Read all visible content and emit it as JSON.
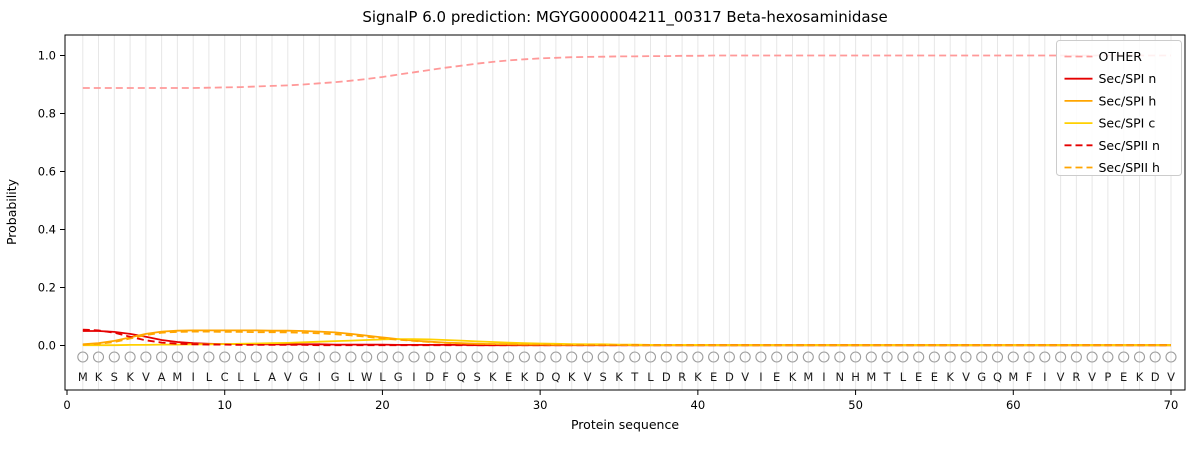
{
  "chart_data": {
    "type": "line",
    "title": "SignalP 6.0 prediction: MGYG000004211_00317 Beta-hexosaminidase",
    "xlabel": "Protein sequence",
    "ylabel": "Probability",
    "x_ticks": [
      0,
      10,
      20,
      30,
      40,
      50,
      60,
      70
    ],
    "y_ticks": [
      0.0,
      0.2,
      0.4,
      0.6,
      0.8,
      1.0
    ],
    "xlim": [
      0,
      71
    ],
    "ylim": [
      0,
      1.05
    ],
    "grid": "vertical-per-residue",
    "legend_position": "upper-right",
    "sequence": "MKSKVAMILCLLAVGIGLWLGIDFQSKEKDQKVSKTLDRKEDVIEKMINHMTLEEKVGQMFIVRVPEKDV",
    "x_start": 1,
    "series": [
      {
        "name": "OTHER",
        "color": "#ff9999",
        "style": "dashed",
        "values": [
          0.888,
          0.888,
          0.888,
          0.888,
          0.888,
          0.888,
          0.888,
          0.888,
          0.889,
          0.89,
          0.891,
          0.893,
          0.895,
          0.897,
          0.9,
          0.904,
          0.908,
          0.913,
          0.919,
          0.926,
          0.934,
          0.942,
          0.95,
          0.958,
          0.965,
          0.972,
          0.978,
          0.983,
          0.987,
          0.99,
          0.992,
          0.994,
          0.995,
          0.996,
          0.997,
          0.997,
          0.998,
          0.998,
          0.999,
          0.999,
          1.0,
          1.0,
          1.0,
          1.0,
          1.0,
          1.0,
          1.0,
          1.0,
          1.0,
          1.0,
          1.0,
          1.0,
          1.0,
          1.0,
          1.0,
          1.0,
          1.0,
          1.0,
          1.0,
          1.0,
          1.0,
          1.0,
          1.0,
          1.0,
          1.0,
          1.0,
          1.0,
          1.0,
          1.0,
          1.0
        ]
      },
      {
        "name": "Sec/SPI n",
        "color": "#e50000",
        "style": "solid",
        "values": [
          0.05,
          0.05,
          0.047,
          0.04,
          0.03,
          0.019,
          0.012,
          0.008,
          0.006,
          0.005,
          0.005,
          0.004,
          0.004,
          0.004,
          0.004,
          0.004,
          0.003,
          0.003,
          0.003,
          0.003,
          0.002,
          0.002,
          0.002,
          0.002,
          0.002,
          0.001,
          0.001,
          0.001,
          0.001,
          0.001,
          0.001,
          0.001,
          0.001,
          0.001,
          0.001,
          0.001,
          0.001,
          0.001,
          0.001,
          0.001,
          0.001,
          0.001,
          0.001,
          0.001,
          0.001,
          0.001,
          0.001,
          0.001,
          0.001,
          0.001,
          0.001,
          0.001,
          0.001,
          0.001,
          0.001,
          0.001,
          0.001,
          0.001,
          0.001,
          0.001,
          0.001,
          0.001,
          0.001,
          0.001,
          0.001,
          0.001,
          0.001,
          0.001,
          0.001,
          0.001
        ]
      },
      {
        "name": "Sec/SPI h",
        "color": "#ffa500",
        "style": "solid",
        "values": [
          0.004,
          0.008,
          0.016,
          0.028,
          0.04,
          0.048,
          0.051,
          0.052,
          0.052,
          0.052,
          0.052,
          0.052,
          0.051,
          0.051,
          0.05,
          0.048,
          0.045,
          0.04,
          0.034,
          0.028,
          0.022,
          0.017,
          0.013,
          0.01,
          0.008,
          0.006,
          0.005,
          0.004,
          0.003,
          0.003,
          0.002,
          0.002,
          0.002,
          0.002,
          0.002,
          0.001,
          0.001,
          0.001,
          0.001,
          0.001,
          0.001,
          0.001,
          0.001,
          0.001,
          0.001,
          0.001,
          0.001,
          0.001,
          0.001,
          0.001,
          0.001,
          0.001,
          0.001,
          0.001,
          0.001,
          0.001,
          0.001,
          0.001,
          0.001,
          0.001,
          0.001,
          0.001,
          0.001,
          0.001,
          0.001,
          0.001,
          0.001,
          0.001,
          0.001,
          0.001
        ]
      },
      {
        "name": "Sec/SPI c",
        "color": "#ffd000",
        "style": "solid",
        "values": [
          0.001,
          0.001,
          0.001,
          0.002,
          0.002,
          0.003,
          0.003,
          0.004,
          0.004,
          0.005,
          0.006,
          0.007,
          0.008,
          0.009,
          0.011,
          0.013,
          0.015,
          0.017,
          0.019,
          0.021,
          0.022,
          0.022,
          0.021,
          0.019,
          0.017,
          0.014,
          0.012,
          0.01,
          0.008,
          0.007,
          0.006,
          0.005,
          0.004,
          0.004,
          0.003,
          0.003,
          0.002,
          0.002,
          0.002,
          0.002,
          0.001,
          0.001,
          0.001,
          0.001,
          0.001,
          0.001,
          0.001,
          0.001,
          0.001,
          0.001,
          0.001,
          0.001,
          0.001,
          0.001,
          0.001,
          0.001,
          0.001,
          0.001,
          0.001,
          0.001,
          0.001,
          0.001,
          0.001,
          0.001,
          0.001,
          0.001,
          0.001,
          0.001,
          0.001,
          0.001
        ]
      },
      {
        "name": "Sec/SPII n",
        "color": "#e50000",
        "style": "dashed",
        "values": [
          0.055,
          0.052,
          0.044,
          0.03,
          0.018,
          0.01,
          0.006,
          0.004,
          0.003,
          0.003,
          0.002,
          0.002,
          0.002,
          0.002,
          0.002,
          0.001,
          0.001,
          0.001,
          0.001,
          0.001,
          0.001,
          0.001,
          0.001,
          0.001,
          0.001,
          0.001,
          0.001,
          0.001,
          0.001,
          0.001,
          0.001,
          0.001,
          0.001,
          0.001,
          0.001,
          0.001,
          0.001,
          0.001,
          0.001,
          0.001,
          0.001,
          0.001,
          0.001,
          0.001,
          0.001,
          0.001,
          0.001,
          0.001,
          0.001,
          0.001,
          0.001,
          0.001,
          0.001,
          0.001,
          0.001,
          0.001,
          0.001,
          0.001,
          0.001,
          0.001,
          0.001,
          0.001,
          0.001,
          0.001,
          0.001,
          0.001,
          0.001,
          0.001,
          0.001,
          0.001
        ]
      },
      {
        "name": "Sec/SPII h",
        "color": "#ffa500",
        "style": "dashed",
        "values": [
          0.003,
          0.006,
          0.012,
          0.024,
          0.036,
          0.044,
          0.047,
          0.048,
          0.048,
          0.047,
          0.047,
          0.046,
          0.046,
          0.045,
          0.044,
          0.042,
          0.039,
          0.035,
          0.03,
          0.025,
          0.02,
          0.016,
          0.012,
          0.009,
          0.007,
          0.006,
          0.005,
          0.004,
          0.003,
          0.003,
          0.002,
          0.002,
          0.002,
          0.002,
          0.002,
          0.001,
          0.001,
          0.001,
          0.001,
          0.001,
          0.001,
          0.001,
          0.001,
          0.001,
          0.001,
          0.001,
          0.001,
          0.001,
          0.001,
          0.001,
          0.001,
          0.001,
          0.001,
          0.001,
          0.001,
          0.001,
          0.001,
          0.001,
          0.001,
          0.001,
          0.001,
          0.001,
          0.001,
          0.001,
          0.001,
          0.001,
          0.001,
          0.001,
          0.001,
          0.001
        ]
      }
    ]
  }
}
